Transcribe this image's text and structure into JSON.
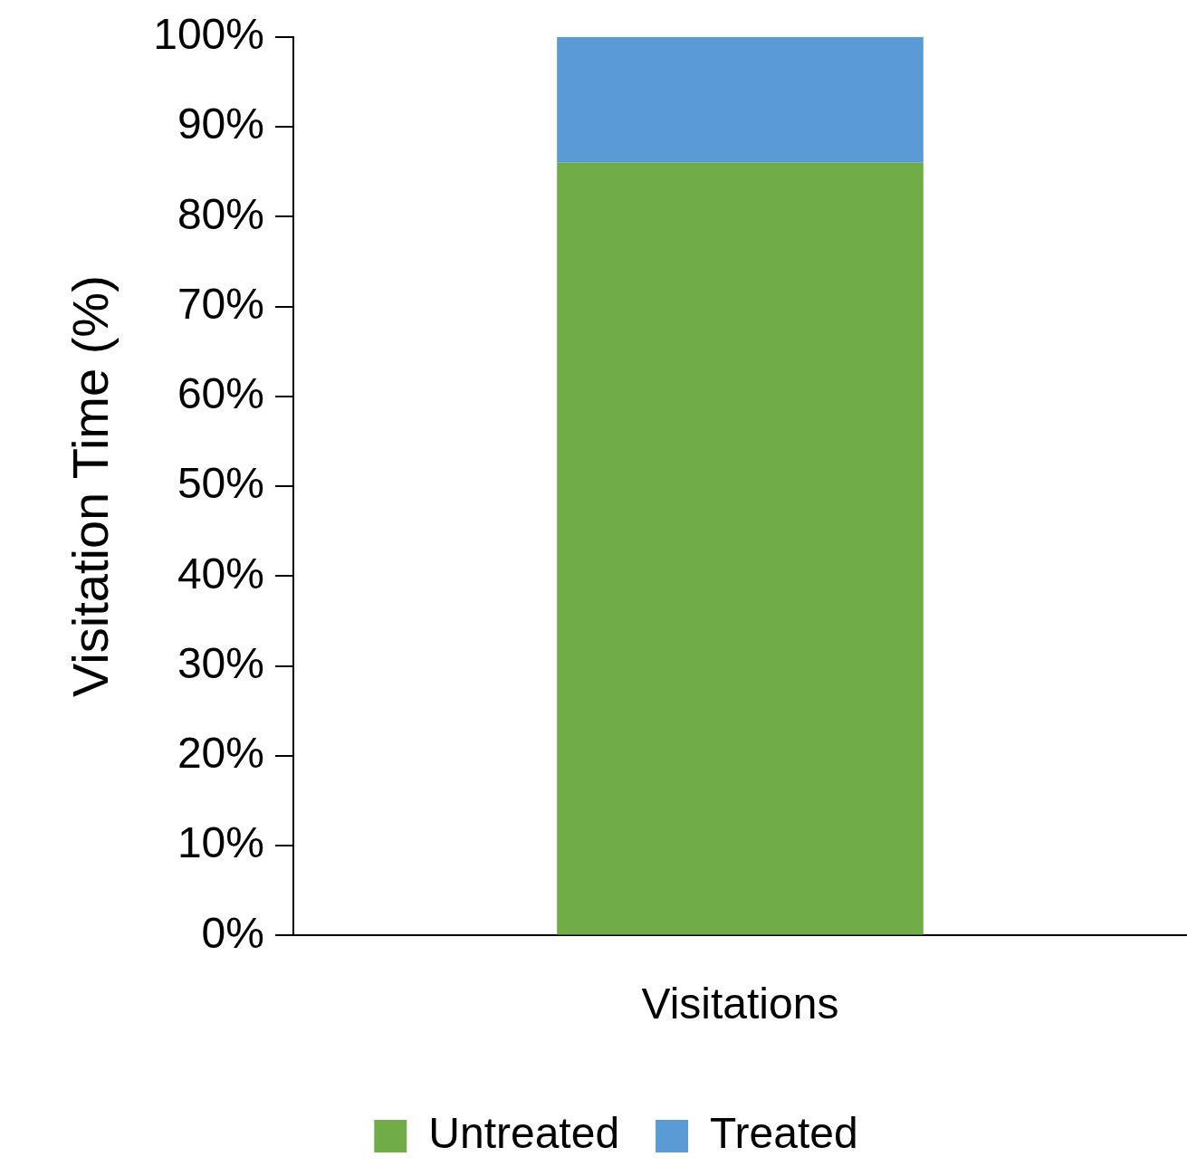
{
  "chart_data": {
    "type": "bar",
    "ylabel": "Visitation Time (%)",
    "categories": [
      "Visitations"
    ],
    "series": [
      {
        "name": "Untreated",
        "color": "#70ad47",
        "values": [
          86
        ]
      },
      {
        "name": "Treated",
        "color": "#5b9bd5",
        "values": [
          14
        ]
      }
    ],
    "stacked": true,
    "ylim": [
      0,
      100
    ],
    "yticks": [
      {
        "value": 0,
        "label": "0%"
      },
      {
        "value": 10,
        "label": "10%"
      },
      {
        "value": 20,
        "label": "20%"
      },
      {
        "value": 30,
        "label": "30%"
      },
      {
        "value": 40,
        "label": "40%"
      },
      {
        "value": 50,
        "label": "50%"
      },
      {
        "value": 60,
        "label": "60%"
      },
      {
        "value": 70,
        "label": "70%"
      },
      {
        "value": 80,
        "label": "80%"
      },
      {
        "value": 90,
        "label": "90%"
      },
      {
        "value": 100,
        "label": "100%"
      }
    ],
    "legend": "bottom"
  }
}
